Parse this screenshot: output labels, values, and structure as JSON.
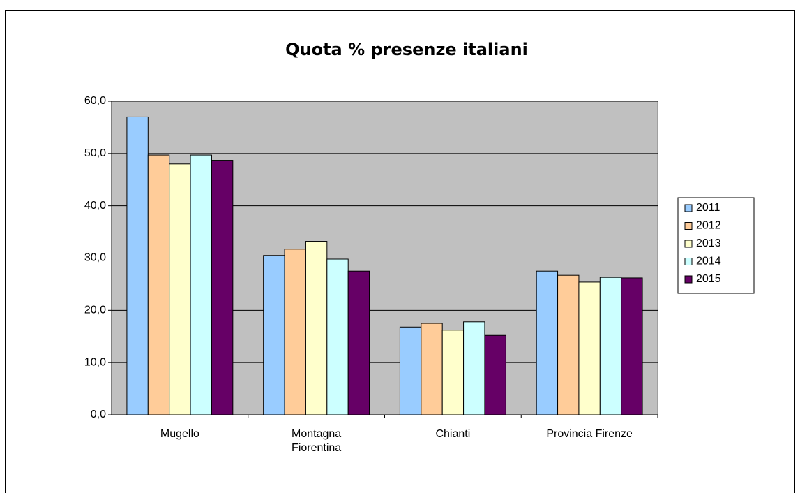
{
  "chart_data": {
    "type": "bar",
    "title": "Quota % presenze italiani",
    "categories": [
      "Mugello",
      "Montagna Fiorentina",
      "Chianti",
      "Provincia Firenze"
    ],
    "series": [
      {
        "name": "2011",
        "color": "#99ccff",
        "values": [
          57.0,
          30.5,
          16.8,
          27.5
        ]
      },
      {
        "name": "2012",
        "color": "#ffcc99",
        "values": [
          49.7,
          31.7,
          17.5,
          26.7
        ]
      },
      {
        "name": "2013",
        "color": "#ffffcc",
        "values": [
          48.0,
          33.2,
          16.2,
          25.4
        ]
      },
      {
        "name": "2014",
        "color": "#ccffff",
        "values": [
          49.7,
          29.8,
          17.8,
          26.3
        ]
      },
      {
        "name": "2015",
        "color": "#660066",
        "values": [
          48.7,
          27.5,
          15.2,
          26.2
        ]
      }
    ],
    "ylim": [
      0,
      60
    ],
    "yticks": [
      {
        "value": 0,
        "label": "0,0"
      },
      {
        "value": 10,
        "label": "10,0"
      },
      {
        "value": 20,
        "label": "20,0"
      },
      {
        "value": 30,
        "label": "30,0"
      },
      {
        "value": 40,
        "label": "40,0"
      },
      {
        "value": 50,
        "label": "50,0"
      },
      {
        "value": 60,
        "label": "60,0"
      }
    ],
    "grid": true,
    "legend": "right",
    "plot_background": "#c0c0c0"
  }
}
